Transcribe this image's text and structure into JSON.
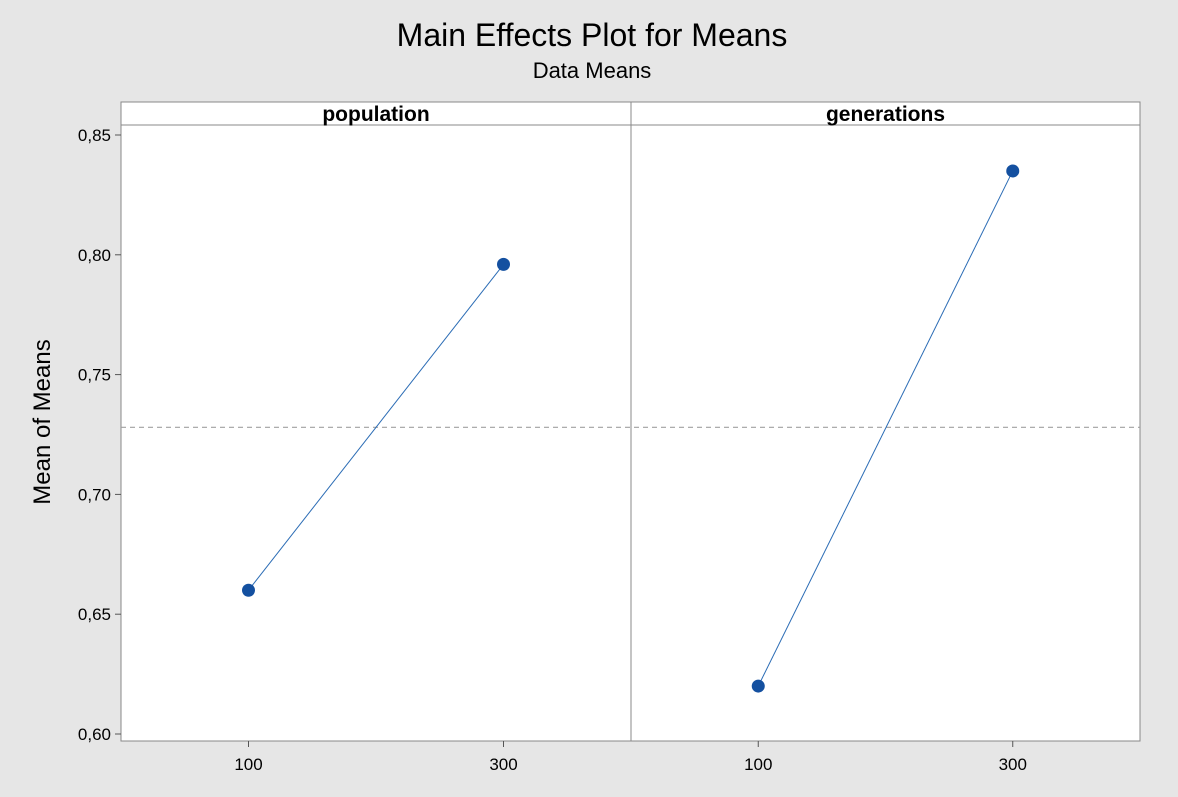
{
  "chart_data": {
    "type": "line",
    "title": "Main Effects Plot for Means",
    "subtitle": "Data Means",
    "ylabel": "Mean of Means",
    "ylim": [
      0.6,
      0.865
    ],
    "yticks": [
      0.6,
      0.65,
      0.7,
      0.75,
      0.8,
      0.85
    ],
    "ytick_labels": [
      "0,60",
      "0,65",
      "0,70",
      "0,75",
      "0,80",
      "0,85"
    ],
    "grand_mean": 0.728,
    "grid": false,
    "panels": [
      {
        "label": "population",
        "categories": [
          "100",
          "300"
        ],
        "values": [
          0.66,
          0.796
        ]
      },
      {
        "label": "generations",
        "categories": [
          "100",
          "300"
        ],
        "values": [
          0.62,
          0.835
        ]
      }
    ],
    "colors": {
      "line": "#2b6cb5",
      "marker": "#1450a0",
      "reference": "#a0a0a0",
      "background": "#e6e6e6",
      "plot": "#ffffff"
    }
  }
}
